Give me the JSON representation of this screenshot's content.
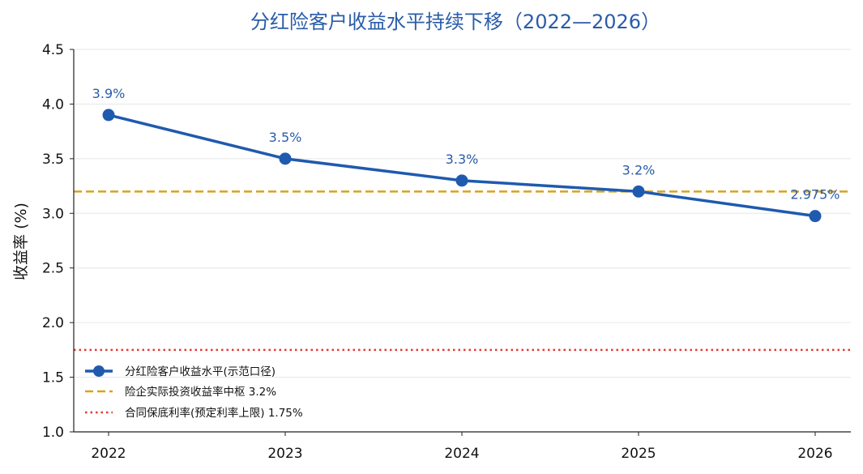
{
  "chart_data": {
    "type": "line",
    "title": "分红险客户收益水平持续下移（2022—2026）",
    "xlabel": "",
    "ylabel": "收益率 (%)",
    "categories": [
      "2022",
      "2023",
      "2024",
      "2025",
      "2026"
    ],
    "ylim": [
      1.0,
      4.5
    ],
    "yticks": [
      "1.0",
      "1.5",
      "2.0",
      "2.5",
      "3.0",
      "3.5",
      "4.0",
      "4.5"
    ],
    "grid": "horizontal",
    "legend_position": "lower-left",
    "series": [
      {
        "name": "分红险客户收益水平(示范口径)",
        "values": [
          3.9,
          3.5,
          3.3,
          3.2,
          2.975
        ],
        "labels": [
          "3.9%",
          "3.5%",
          "3.3%",
          "3.2%",
          "2.975%"
        ],
        "color": "#1f5aae",
        "style": "solid-line-circle-markers"
      }
    ],
    "reference_lines": [
      {
        "name": "险企实际投资收益率中枢 3.2%",
        "value": 3.2,
        "color": "#d9a21b",
        "style": "dashed"
      },
      {
        "name": "合同保底利率(预定利率上限) 1.75%",
        "value": 1.75,
        "color": "#e03b35",
        "style": "dotted"
      }
    ]
  }
}
